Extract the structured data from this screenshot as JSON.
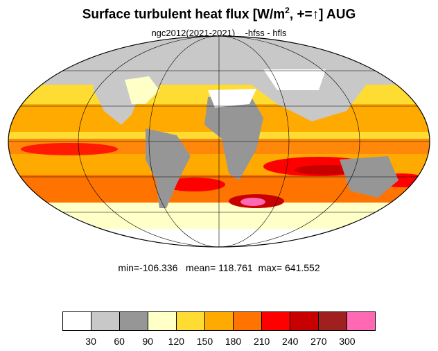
{
  "header": {
    "title_main": "Surface turbulent heat flux [W/m",
    "title_sup": "2",
    "title_rest": ", +=↑]  AUG",
    "subtitle": "ngc2012(2021-2021)    -hfss - hfls"
  },
  "stats": {
    "text": "min=-106.336   mean= 118.761  max= 641.552",
    "min": -106.336,
    "mean": 118.761,
    "max": 641.552
  },
  "colorbar": {
    "levels": [
      "30",
      "60",
      "90",
      "120",
      "150",
      "180",
      "210",
      "240",
      "270",
      "300"
    ],
    "colors": [
      "#ffffff",
      "#c8c8c8",
      "#969696",
      "#ffffc8",
      "#ffdc32",
      "#ffaa00",
      "#ff7300",
      "#ff0000",
      "#c80000",
      "#a02020",
      "#ff69b4"
    ]
  },
  "map": {
    "projection": "mollweide",
    "land_fill": "#969696",
    "ocean_base": "#ffdc32"
  }
}
